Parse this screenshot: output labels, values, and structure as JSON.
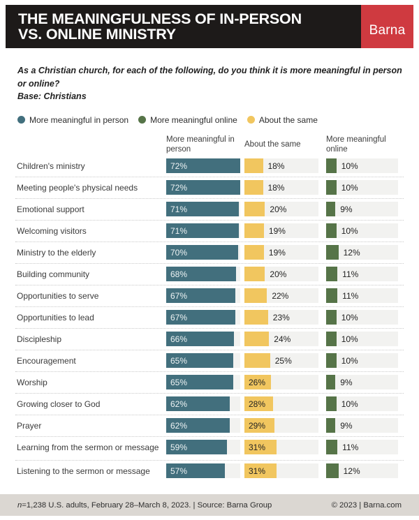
{
  "header": {
    "title_line1": "THE MEANINGFULNESS OF IN-PERSON",
    "title_line2": "VS. ONLINE MINISTRY",
    "logo_text": "Barna"
  },
  "subtitle": {
    "question": "As a Christian church, for each of the following, do you think it is more meaningful in person or online?",
    "base": "Base: Christians"
  },
  "legend": {
    "items": [
      {
        "label": "More meaningful in person",
        "color": "#426f7d"
      },
      {
        "label": "More meaningful online",
        "color": "#567448"
      },
      {
        "label": "About the same",
        "color": "#f1c65f"
      }
    ]
  },
  "columns": {
    "in_person": "More meaningful in person",
    "about_same": "About the same",
    "online": "More meaningful online"
  },
  "chart_data": {
    "type": "bar",
    "orientation": "horizontal",
    "unit": "%",
    "xlim": [
      0,
      72
    ],
    "grid": false,
    "legend_position": "top",
    "categories": [
      "Children's ministry",
      "Meeting people's physical needs",
      "Emotional support",
      "Welcoming visitors",
      "Ministry to the elderly",
      "Building community",
      "Opportunities to serve",
      "Opportunities to lead",
      "Discipleship",
      "Encouragement",
      "Worship",
      "Growing closer to God",
      "Prayer",
      "Learning from the sermon or message",
      "Listening to the sermon or message"
    ],
    "series": [
      {
        "name": "More meaningful in person",
        "color": "#426f7d",
        "values": [
          72,
          72,
          71,
          71,
          70,
          68,
          67,
          67,
          66,
          65,
          65,
          62,
          62,
          59,
          57
        ]
      },
      {
        "name": "About the same",
        "color": "#f1c65f",
        "values": [
          18,
          18,
          20,
          19,
          19,
          20,
          22,
          23,
          24,
          25,
          26,
          28,
          29,
          31,
          31
        ]
      },
      {
        "name": "More meaningful online",
        "color": "#567448",
        "values": [
          10,
          10,
          9,
          10,
          12,
          11,
          11,
          10,
          10,
          10,
          9,
          10,
          9,
          11,
          12
        ]
      }
    ],
    "value_suffix": "%",
    "two_line_label_rows": [
      13
    ]
  },
  "footer": {
    "n_italic": "n",
    "left_rest": "=1,238 U.S. adults, February 28–March 8, 2023. | Source: Barna Group",
    "right": "© 2023 | Barna.com"
  },
  "colors": {
    "header_bg": "#1d1a19",
    "logo_red": "#cf3a40",
    "in_person": "#426f7d",
    "about_same": "#f1c65f",
    "online": "#567448",
    "track": "#f2f2f0",
    "footer_bg": "#dbd7d2"
  }
}
